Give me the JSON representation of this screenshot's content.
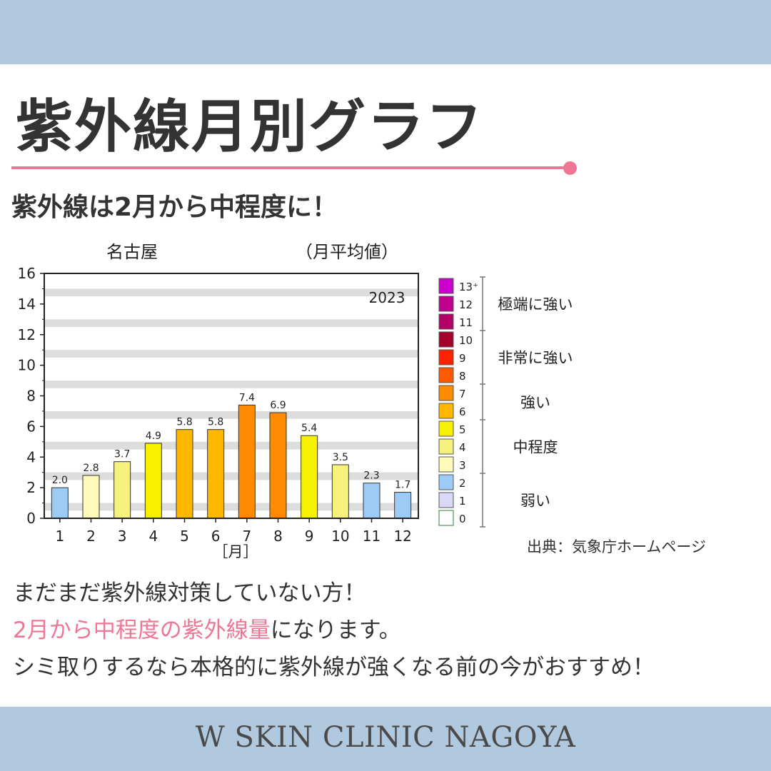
{
  "header": {
    "title": "紫外線月別グラフ",
    "subtitle": "紫外線は2月から中程度に！"
  },
  "chart_data": {
    "type": "bar",
    "location": "名古屋",
    "note": "（月平均値）",
    "year": "2023",
    "categories": [
      "1",
      "2",
      "3",
      "4",
      "5",
      "6",
      "7",
      "8",
      "9",
      "10",
      "11",
      "12"
    ],
    "values": [
      2.0,
      2.8,
      3.7,
      4.9,
      5.8,
      5.8,
      7.4,
      6.9,
      5.4,
      3.5,
      2.3,
      1.7
    ],
    "value_labels": [
      "2.0",
      "2.8",
      "3.7",
      "4.9",
      "5.8",
      "5.8",
      "7.4",
      "6.9",
      "5.4",
      "3.5",
      "2.3",
      "1.7"
    ],
    "xlabel": "［月］",
    "ylabel": "",
    "ylim": [
      0,
      16
    ],
    "yticks": [
      0,
      2,
      4,
      6,
      8,
      10,
      12,
      14,
      16
    ],
    "grid": true,
    "legend": {
      "placement": "right",
      "levels": [
        {
          "label": "13⁺",
          "color": "#cc00cc"
        },
        {
          "label": "12",
          "color": "#c0008f"
        },
        {
          "label": "11",
          "color": "#b20066"
        },
        {
          "label": "10",
          "color": "#a5002c"
        },
        {
          "label": "9",
          "color": "#ff2200"
        },
        {
          "label": "8",
          "color": "#ff5a00"
        },
        {
          "label": "7",
          "color": "#ff8c00"
        },
        {
          "label": "6",
          "color": "#ffb700"
        },
        {
          "label": "5",
          "color": "#f7f000"
        },
        {
          "label": "4",
          "color": "#f6f07c"
        },
        {
          "label": "3",
          "color": "#fffbb8"
        },
        {
          "label": "2",
          "color": "#9ccbf6"
        },
        {
          "label": "1",
          "color": "#d9d9f7"
        },
        {
          "label": "0",
          "color": "#ffffff"
        }
      ],
      "categories": [
        {
          "label": "極端に強い",
          "from": 11,
          "to": 13
        },
        {
          "label": "非常に強い",
          "from": 8,
          "to": 10
        },
        {
          "label": "強い",
          "from": 6,
          "to": 7
        },
        {
          "label": "中程度",
          "from": 3,
          "to": 5
        },
        {
          "label": "弱い",
          "from": 0,
          "to": 2
        }
      ]
    },
    "bar_colors": {
      "1": "#9ccbf6",
      "2": "#9ccbf6",
      "3": "#fffbb8",
      "4": "#f6f07c",
      "5": "#f7f000",
      "6": "#ffb700",
      "7": "#ff8c00"
    }
  },
  "source": "出典：気象庁ホームページ",
  "body": {
    "line1": "まだまだ紫外線対策していない方！",
    "line2_highlight": "2月から中程度の紫外線量",
    "line2_rest": "になります。",
    "line3": "シミ取りするなら本格的に紫外線が強くなる前の今がおすすめ！"
  },
  "footer": {
    "text": "W SKIN CLINIC NAGOYA"
  },
  "colors": {
    "band": "#b1c9df",
    "accent": "#ef7694",
    "text": "#333333"
  }
}
